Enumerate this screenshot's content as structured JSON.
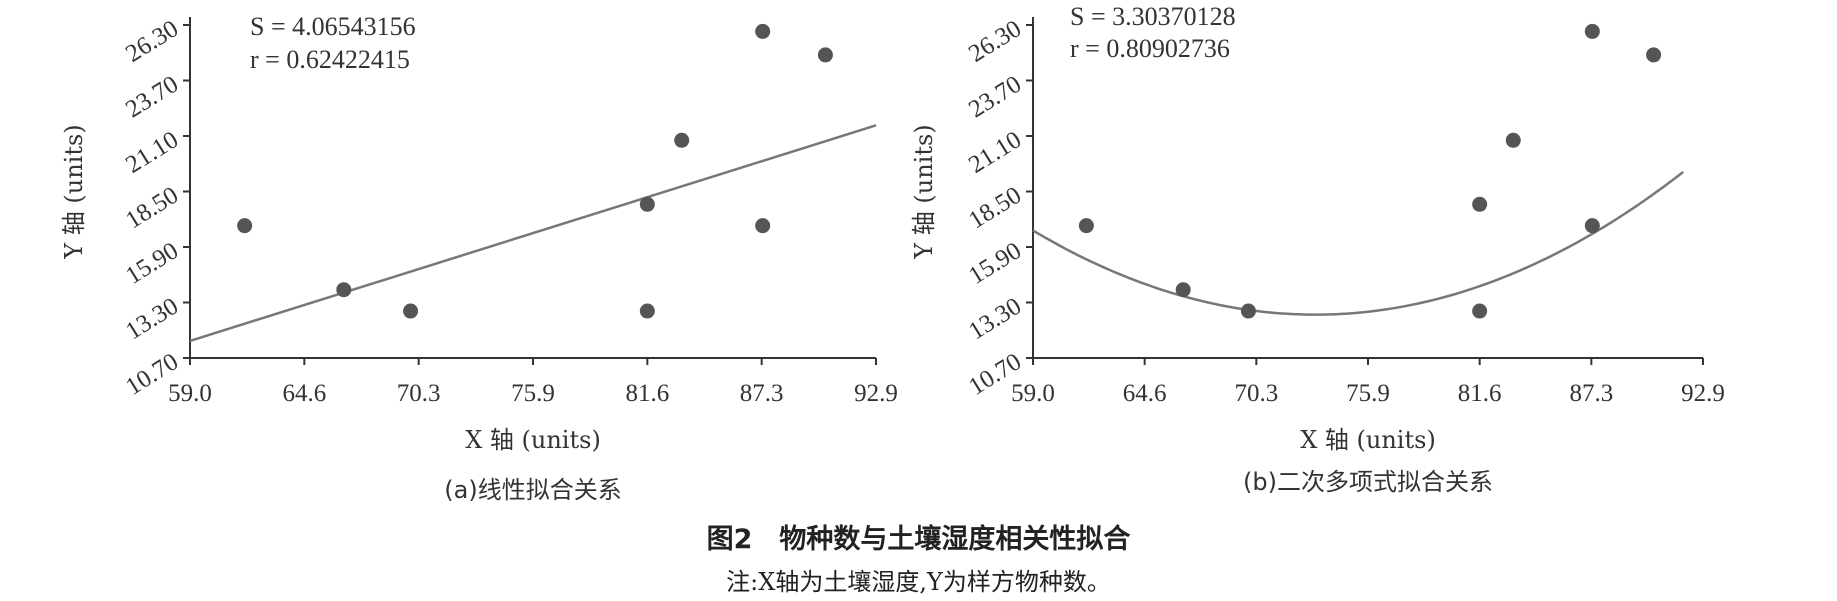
{
  "figure": {
    "title": "图2　物种数与土壤湿度相关性拟合",
    "note": "注:X轴为土壤湿度,Y为样方物种数。"
  },
  "chart_data": [
    {
      "type": "scatter",
      "subtitle": "(a)线性拟合关系",
      "xlabel": "X 轴 (units)",
      "ylabel": "Y 轴 (units)",
      "xlim": [
        59.0,
        92.9
      ],
      "ylim": [
        10.7,
        26.3
      ],
      "xticks": [
        "59.0",
        "64.6",
        "70.3",
        "75.9",
        "81.6",
        "87.3",
        "92.9"
      ],
      "yticks": [
        "10.70",
        "13.30",
        "15.90",
        "18.50",
        "21.10",
        "23.70",
        "26.30"
      ],
      "stats": [
        "S = 4.06543156",
        "r = 0.62422415"
      ],
      "points": [
        {
          "x": 61.7,
          "y": 16.9
        },
        {
          "x": 66.6,
          "y": 13.9
        },
        {
          "x": 69.9,
          "y": 12.9
        },
        {
          "x": 81.6,
          "y": 17.9
        },
        {
          "x": 81.6,
          "y": 12.9
        },
        {
          "x": 83.3,
          "y": 20.9
        },
        {
          "x": 87.3,
          "y": 26.0
        },
        {
          "x": 87.3,
          "y": 16.9
        },
        {
          "x": 90.4,
          "y": 24.9
        }
      ],
      "fit": {
        "type": "linear",
        "x": [
          59.0,
          92.9
        ],
        "y": [
          11.5,
          21.6
        ]
      },
      "marker_color": "#555555",
      "line_color": "#777777"
    },
    {
      "type": "scatter",
      "subtitle": "(b)二次多项式拟合关系",
      "xlabel": "X 轴 (units)",
      "ylabel": "Y 轴 (units)",
      "xlim": [
        59.0,
        92.9
      ],
      "ylim": [
        10.7,
        26.3
      ],
      "xticks": [
        "59.0",
        "64.6",
        "70.3",
        "75.9",
        "81.6",
        "87.3",
        "92.9"
      ],
      "yticks": [
        "10.70",
        "13.30",
        "15.90",
        "18.50",
        "21.10",
        "23.70",
        "26.30"
      ],
      "stats": [
        "S = 3.30370128",
        "r = 0.80902736"
      ],
      "points": [
        {
          "x": 61.7,
          "y": 16.9
        },
        {
          "x": 66.6,
          "y": 13.9
        },
        {
          "x": 69.9,
          "y": 12.9
        },
        {
          "x": 81.6,
          "y": 17.9
        },
        {
          "x": 81.6,
          "y": 12.9
        },
        {
          "x": 83.3,
          "y": 20.9
        },
        {
          "x": 87.3,
          "y": 26.0
        },
        {
          "x": 87.3,
          "y": 16.9
        },
        {
          "x": 90.4,
          "y": 24.9
        }
      ],
      "fit": {
        "type": "quadratic",
        "coefficients": [
          0.0193,
          -2.829,
          116.4
        ],
        "x_range": [
          59.0,
          91.9
        ]
      },
      "marker_color": "#555555",
      "line_color": "#777777"
    }
  ]
}
